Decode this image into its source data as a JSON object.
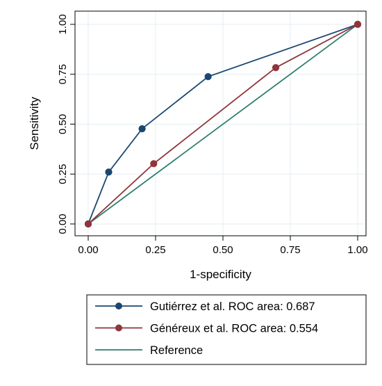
{
  "chart_data": {
    "type": "line",
    "title": "",
    "xlabel": "1-specificity",
    "ylabel": "Sensitivity",
    "xlim": [
      0,
      1
    ],
    "ylim": [
      0,
      1
    ],
    "x_ticks": [
      0,
      0.25,
      0.5,
      0.75,
      1
    ],
    "y_ticks": [
      0,
      0.25,
      0.5,
      0.75,
      1
    ],
    "x_tick_labels": [
      "0.00",
      "0.25",
      "0.50",
      "0.75",
      "1.00"
    ],
    "y_tick_labels": [
      "0.00",
      "0.25",
      "0.50",
      "0.75",
      "1.00"
    ],
    "grid": true,
    "legend_position": "bottom",
    "series": [
      {
        "name": "Gutiérrez et al. ROC area: 0.687",
        "color": "#1a476f",
        "markers": true,
        "x": [
          0,
          0.076,
          0.2,
          0.445,
          1
        ],
        "y": [
          0,
          0.26,
          0.477,
          0.738,
          1
        ]
      },
      {
        "name": "Généreux et al. ROC area: 0.554",
        "color": "#90353b",
        "markers": true,
        "x": [
          0,
          0.243,
          0.696,
          1
        ],
        "y": [
          0,
          0.302,
          0.783,
          1
        ]
      },
      {
        "name": "Reference",
        "color": "#2e7d6e",
        "markers": false,
        "x": [
          0,
          1
        ],
        "y": [
          0,
          1
        ]
      }
    ]
  }
}
